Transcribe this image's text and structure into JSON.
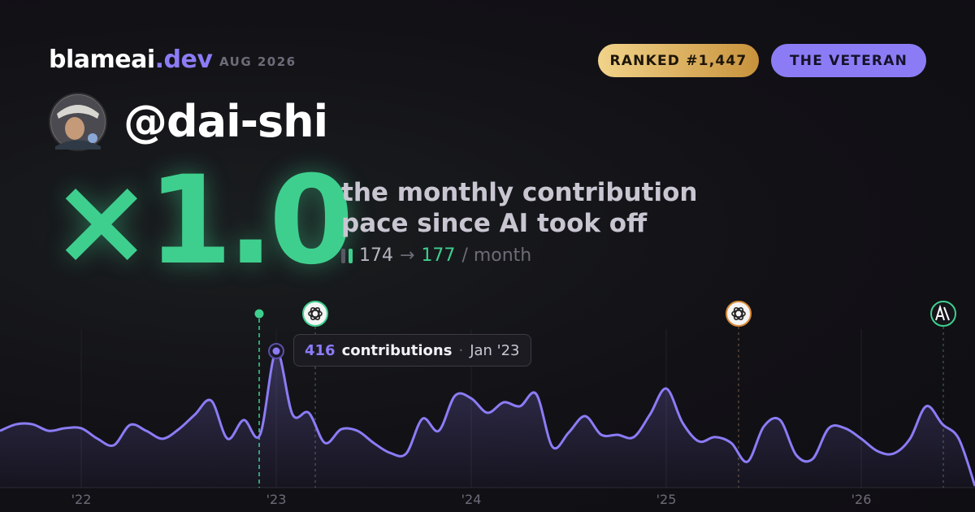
{
  "header": {
    "brand": "blameai",
    "brand_tld": ".dev",
    "date": "AUG 2026",
    "rank": "RANKED #1,447",
    "badge": "THE VETERAN"
  },
  "profile": {
    "handle": "@dai-shi"
  },
  "headline": {
    "multiplier": "×1.0",
    "caption": [
      "the monthly contribution",
      "pace since AI took off"
    ],
    "before": 174,
    "arrow": "→",
    "after": 177,
    "unit": "/ month"
  },
  "chart_data": {
    "type": "line",
    "color": "#8b7cf6",
    "categories": [
      null,
      null,
      null,
      null,
      null,
      "'22",
      null,
      null,
      null,
      null,
      null,
      null,
      null,
      null,
      null,
      null,
      null,
      "'23",
      null,
      null,
      null,
      null,
      null,
      null,
      null,
      null,
      null,
      null,
      null,
      "'24",
      null,
      null,
      null,
      null,
      null,
      null,
      null,
      null,
      null,
      null,
      null,
      "'25",
      null,
      null,
      null,
      null,
      null,
      null,
      null,
      null,
      null,
      null,
      null,
      "'26",
      null,
      null,
      null,
      null,
      null,
      null,
      null
    ],
    "values": [
      173,
      193,
      193,
      173,
      181,
      181,
      149,
      129,
      191,
      173,
      149,
      178,
      223,
      265,
      149,
      206,
      161,
      416,
      223,
      228,
      136,
      178,
      173,
      136,
      106,
      104,
      210,
      173,
      280,
      272,
      228,
      260,
      248,
      285,
      124,
      168,
      218,
      161,
      161,
      154,
      223,
      302,
      198,
      141,
      154,
      136,
      79,
      186,
      206,
      99,
      87,
      181,
      181,
      149,
      111,
      104,
      149,
      248,
      193,
      149,
      5
    ],
    "grid": true,
    "tooltip": {
      "unit": "contributions",
      "sep": "·",
      "date": "Jan '23"
    }
  }
}
